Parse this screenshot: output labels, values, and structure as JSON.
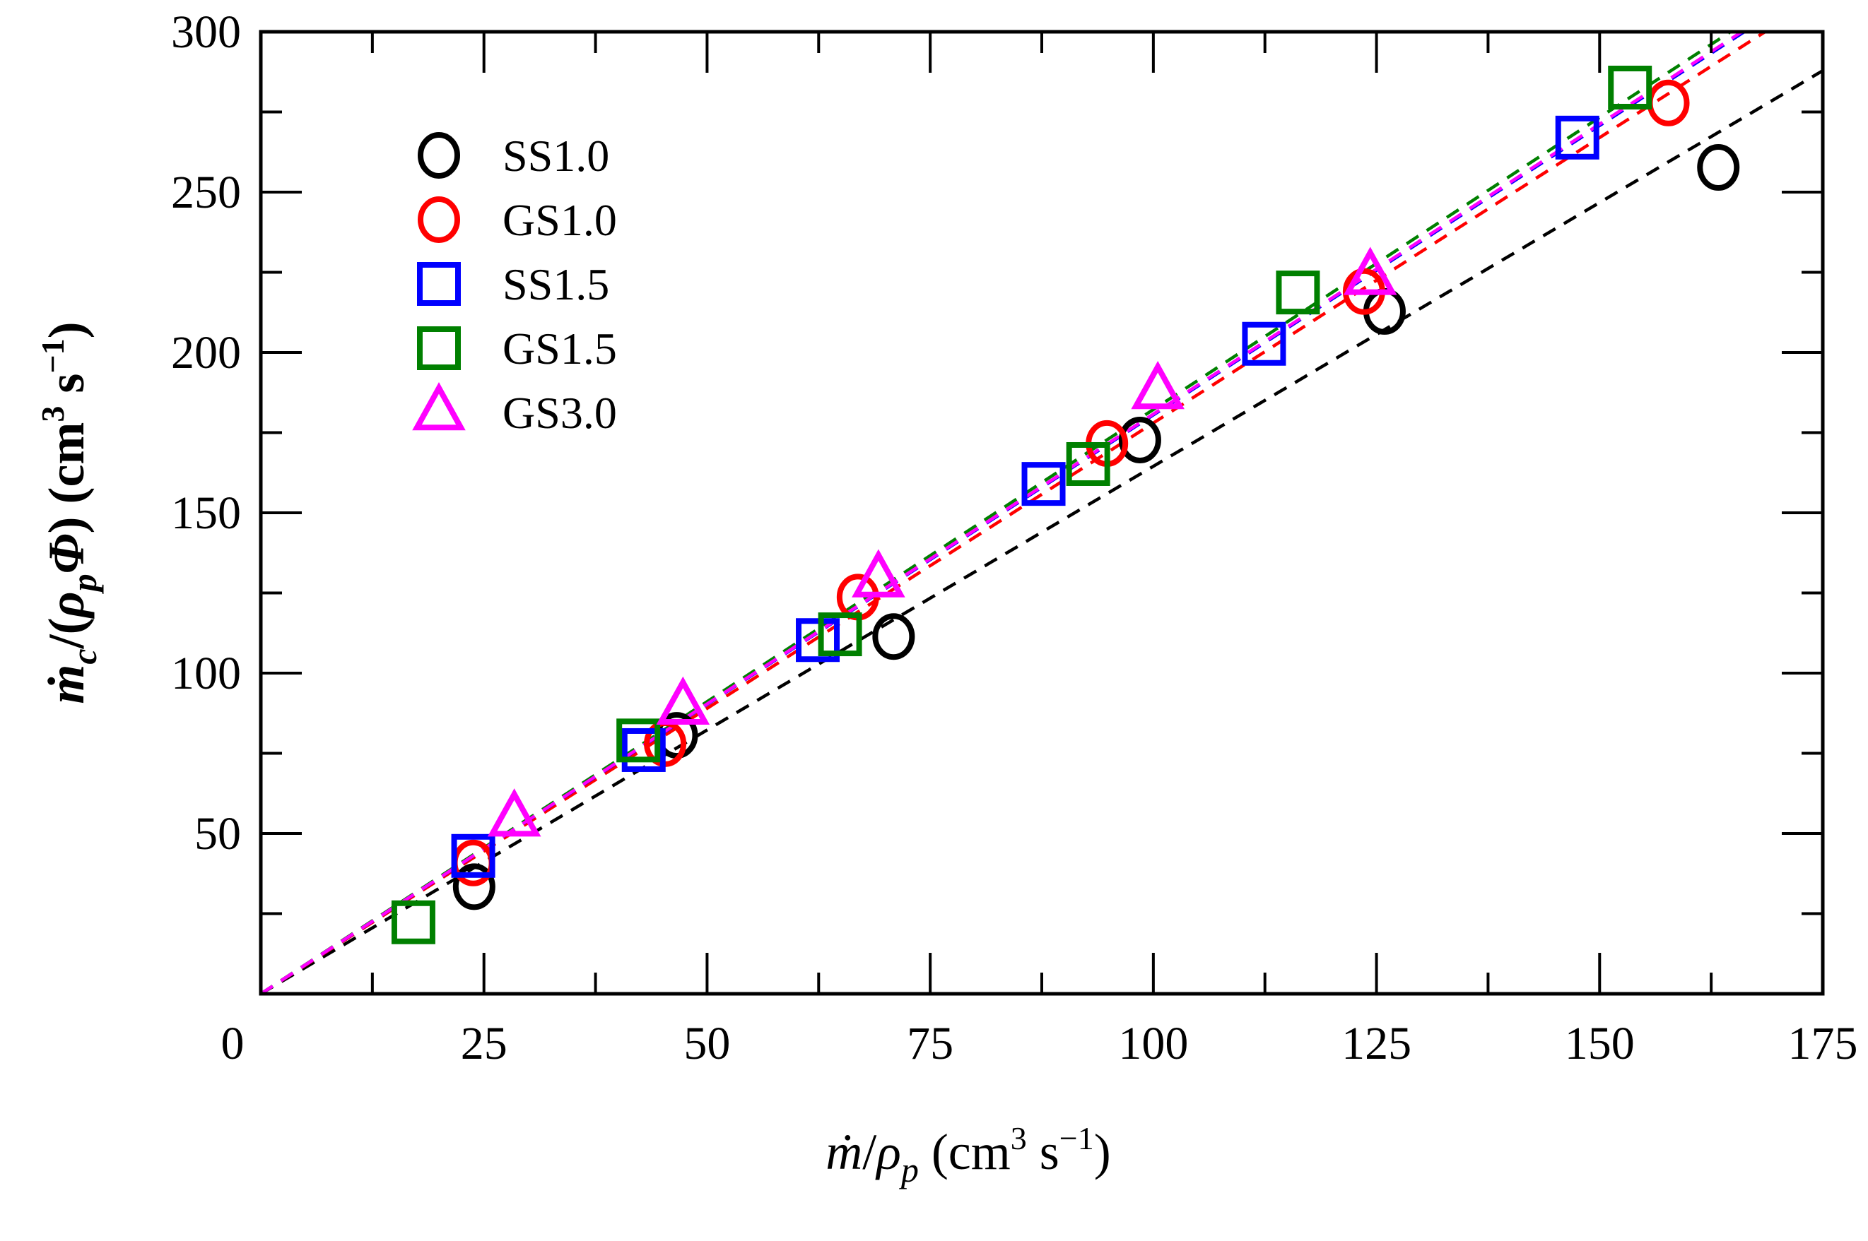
{
  "chart_data": {
    "type": "scatter",
    "title": "",
    "xlabel": "ṁ/ρ_p (cm³ s⁻¹)",
    "ylabel": "ṁ_c/(ρ_p Φ) (cm³ s⁻¹)",
    "xlim": [
      0,
      175
    ],
    "ylim": [
      0,
      300
    ],
    "xticks": [
      0,
      25,
      50,
      75,
      100,
      125,
      150,
      175
    ],
    "yticks": [
      50,
      100,
      150,
      200,
      250,
      300
    ],
    "x_minor_step": 12.5,
    "y_minor_step": 25,
    "grid": false,
    "legend_position": "upper left",
    "series": [
      {
        "name": "SS1.0",
        "marker": "circle",
        "color": "#000000",
        "x": [
          23.9,
          46.6,
          70.9,
          98.5,
          125.9,
          163.3
        ],
        "y": [
          33.4,
          80.6,
          111.4,
          172.7,
          212.8,
          257.7
        ],
        "fit_slope": 1.645
      },
      {
        "name": "GS1.0",
        "marker": "circle",
        "color": "#ff0000",
        "x": [
          23.8,
          45.3,
          66.9,
          94.8,
          123.6,
          157.7
        ],
        "y": [
          40.8,
          78.0,
          123.7,
          171.6,
          219.0,
          277.8
        ],
        "fit_slope": 1.78
      },
      {
        "name": "SS1.5",
        "marker": "square",
        "color": "#0000ff",
        "x": [
          23.8,
          42.9,
          62.4,
          87.7,
          112.4,
          147.5
        ],
        "y": [
          43.0,
          76.0,
          110.3,
          159.0,
          202.7,
          267.0
        ],
        "fit_slope": 1.805
      },
      {
        "name": "GS1.5",
        "marker": "square",
        "color": "#008000",
        "x": [
          17.1,
          42.3,
          64.9,
          92.7,
          116.2,
          153.4
        ],
        "y": [
          22.3,
          79.0,
          112.1,
          165.2,
          218.7,
          282.6
        ],
        "fit_slope": 1.822
      },
      {
        "name": "GS3.0",
        "marker": "triangle",
        "color": "#ff00ff",
        "x": [
          28.4,
          47.3,
          69.2,
          100.5,
          124.3
        ],
        "y": [
          54.6,
          89.5,
          129.2,
          187.9,
          223.5
        ],
        "fit_slope": 1.808
      }
    ],
    "fit_lines": "dashed linear fits through origin, one per series, in series color"
  },
  "labels": {
    "x_ticks": [
      "0",
      "25",
      "50",
      "75",
      "100",
      "125",
      "150",
      "175"
    ],
    "y_ticks": [
      "50",
      "100",
      "150",
      "200",
      "250",
      "300"
    ],
    "legend": [
      "SS1.0",
      "GS1.0",
      "SS1.5",
      "GS1.5",
      "GS3.0"
    ]
  }
}
